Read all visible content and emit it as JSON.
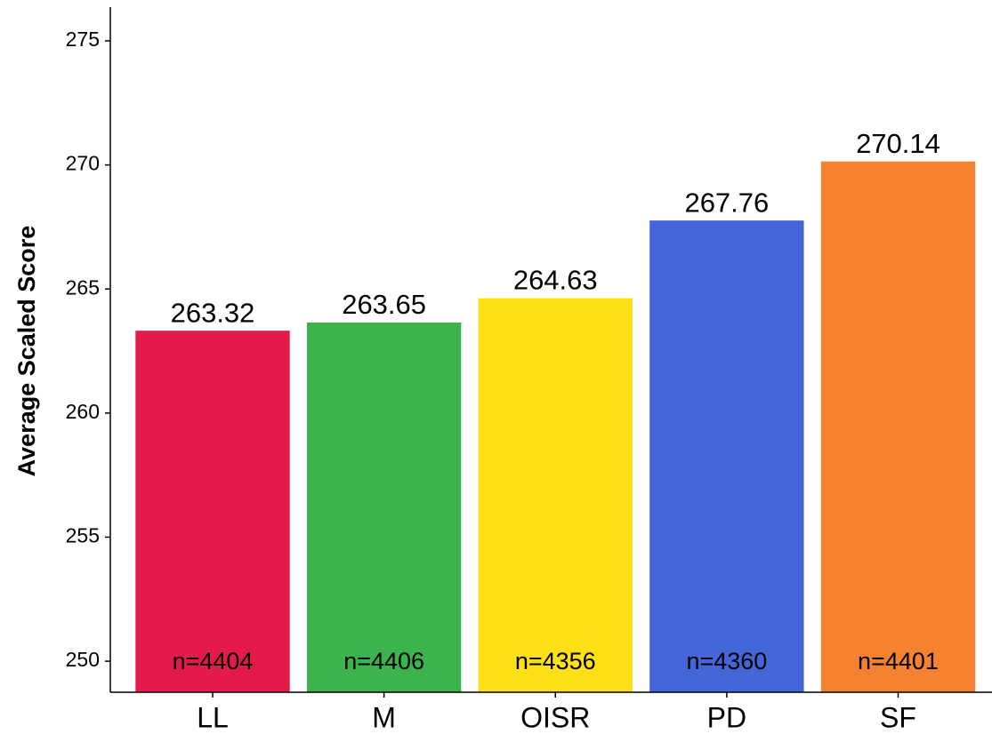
{
  "chart_data": {
    "type": "bar",
    "y_label": "Average Scaled Score",
    "categories": [
      "LL",
      "M",
      "OISR",
      "PD",
      "SF"
    ],
    "values": [
      263.32,
      263.65,
      264.63,
      267.76,
      270.14
    ],
    "colors": [
      "#e31a4a",
      "#3cb34c",
      "#fde016",
      "#4466d7",
      "#f58231"
    ],
    "annotations": [
      "n=4404",
      "n=4406",
      "n=4356",
      "n=4360",
      "n=4401"
    ],
    "ylim": [
      248.75,
      276.36
    ],
    "yticks": [
      250,
      255,
      260,
      265,
      270,
      275
    ],
    "grid": false
  }
}
